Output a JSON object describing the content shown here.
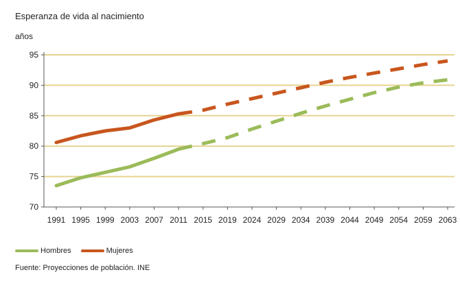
{
  "chart_data": {
    "type": "line",
    "title": "Esperanza de vida al nacimiento",
    "ylabel": "años",
    "xlabel": "",
    "categories": [
      "1991",
      "1995",
      "1999",
      "2003",
      "2007",
      "2011",
      "2015",
      "2019",
      "2024",
      "2029",
      "2034",
      "2039",
      "2044",
      "2049",
      "2054",
      "2059",
      "2063"
    ],
    "ylim": [
      70,
      95
    ],
    "yticks": [
      70,
      75,
      80,
      85,
      90,
      95
    ],
    "grid": "horizontal",
    "legend_position": "bottom-left",
    "colors": {
      "gridline": "#e6d38f",
      "axis": "#555555"
    },
    "projection_start": "2011",
    "series": [
      {
        "name": "Hombres",
        "color": "#9bbb59",
        "values": [
          73.5,
          74.8,
          75.7,
          76.6,
          78.0,
          79.5,
          80.4,
          81.4,
          82.8,
          84.1,
          85.4,
          86.6,
          87.7,
          88.8,
          89.7,
          90.4,
          90.9
        ]
      },
      {
        "name": "Mujeres",
        "color": "#c8561e",
        "values": [
          80.6,
          81.7,
          82.5,
          83.0,
          84.3,
          85.3,
          85.9,
          86.9,
          87.8,
          88.7,
          89.6,
          90.5,
          91.3,
          92.0,
          92.7,
          93.4,
          94.0
        ]
      }
    ]
  },
  "source": "Fuente: Proyecciones de población. INE"
}
